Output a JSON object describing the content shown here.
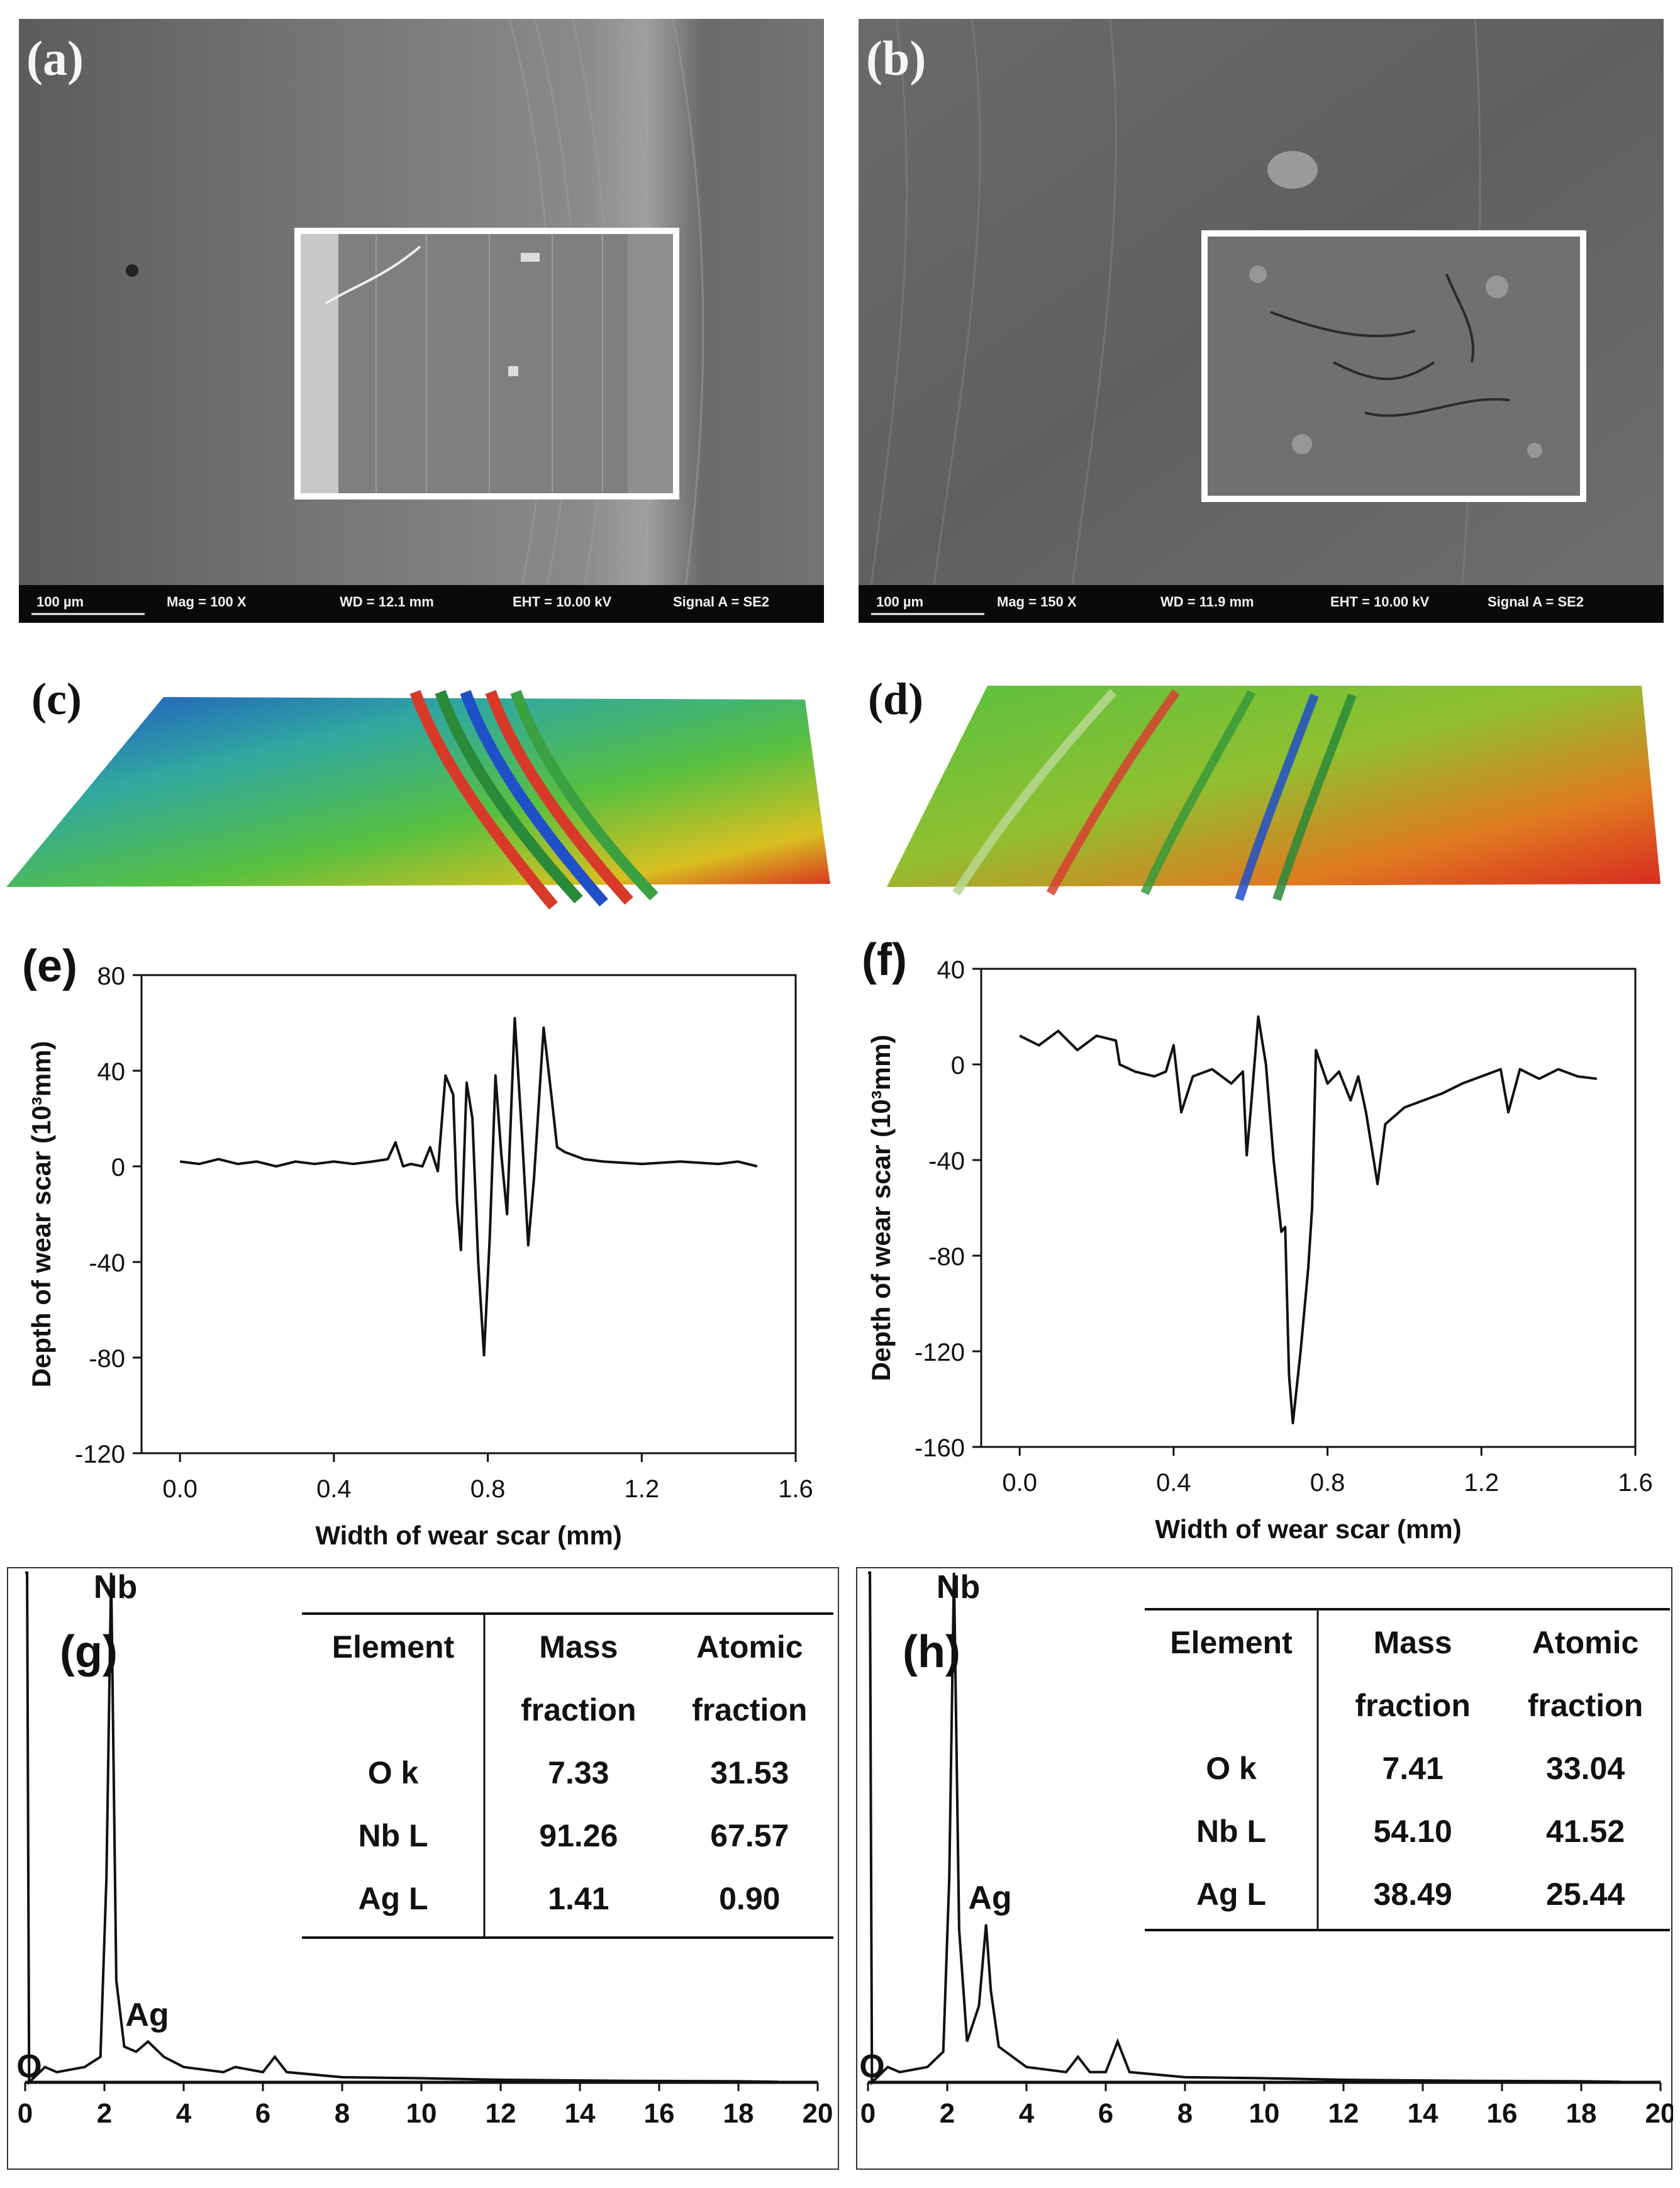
{
  "panels": {
    "a": {
      "label": "(a)",
      "scale": "100 µm",
      "mag": "Mag =    100 X",
      "wd": "WD = 12.1 mm",
      "eht": "EHT = 10.00 kV",
      "signal": "Signal A = SE2"
    },
    "b": {
      "label": "(b)",
      "scale": "100 µm",
      "mag": "Mag =    150 X",
      "wd": "WD = 11.9 mm",
      "eht": "EHT = 10.00 kV",
      "signal": "Signal A = SE2"
    },
    "c": {
      "label": "(c)"
    },
    "d": {
      "label": "(d)"
    }
  },
  "chart_data": [
    {
      "id": "e",
      "label": "(e)",
      "type": "line",
      "xlabel": "Width of wear scar (mm)",
      "ylabel": "Depth of wear scar (10³mm)",
      "xlim": [
        -0.1,
        1.6
      ],
      "ylim": [
        -120,
        80
      ],
      "xticks": [
        "0.0",
        "0.4",
        "0.8",
        "1.2",
        "1.6"
      ],
      "xtick_values": [
        0.0,
        0.4,
        0.8,
        1.2,
        1.6
      ],
      "yticks": [
        "80",
        "40",
        "0",
        "-40",
        "-80",
        "-120"
      ],
      "ytick_values": [
        80,
        40,
        0,
        -40,
        -80,
        -120
      ],
      "series": [
        {
          "name": "profile",
          "points": [
            [
              0.0,
              2
            ],
            [
              0.05,
              1
            ],
            [
              0.1,
              3
            ],
            [
              0.15,
              1
            ],
            [
              0.2,
              2
            ],
            [
              0.25,
              0
            ],
            [
              0.3,
              2
            ],
            [
              0.35,
              1
            ],
            [
              0.4,
              2
            ],
            [
              0.45,
              1
            ],
            [
              0.5,
              2
            ],
            [
              0.54,
              3
            ],
            [
              0.56,
              10
            ],
            [
              0.58,
              0
            ],
            [
              0.6,
              1
            ],
            [
              0.63,
              0
            ],
            [
              0.65,
              8
            ],
            [
              0.67,
              -2
            ],
            [
              0.69,
              38
            ],
            [
              0.71,
              30
            ],
            [
              0.72,
              -15
            ],
            [
              0.73,
              -35
            ],
            [
              0.745,
              35
            ],
            [
              0.76,
              20
            ],
            [
              0.775,
              -40
            ],
            [
              0.79,
              -79
            ],
            [
              0.805,
              -30
            ],
            [
              0.82,
              38
            ],
            [
              0.835,
              5
            ],
            [
              0.85,
              -20
            ],
            [
              0.87,
              62
            ],
            [
              0.89,
              10
            ],
            [
              0.905,
              -33
            ],
            [
              0.92,
              -5
            ],
            [
              0.945,
              58
            ],
            [
              0.965,
              30
            ],
            [
              0.98,
              8
            ],
            [
              1.0,
              6
            ],
            [
              1.05,
              3
            ],
            [
              1.1,
              2
            ],
            [
              1.2,
              1
            ],
            [
              1.3,
              2
            ],
            [
              1.4,
              1
            ],
            [
              1.45,
              2
            ],
            [
              1.5,
              0
            ]
          ]
        }
      ]
    },
    {
      "id": "f",
      "label": "(f)",
      "type": "line",
      "xlabel": "Width of wear scar (mm)",
      "ylabel": "Depth of wear scar (10³mm)",
      "xlim": [
        -0.1,
        1.6
      ],
      "ylim": [
        -160,
        40
      ],
      "xticks": [
        "0.0",
        "0.4",
        "0.8",
        "1.2",
        "1.6"
      ],
      "xtick_values": [
        0.0,
        0.4,
        0.8,
        1.2,
        1.6
      ],
      "yticks": [
        "40",
        "0",
        "-40",
        "-80",
        "-120",
        "-160"
      ],
      "ytick_values": [
        40,
        0,
        -40,
        -80,
        -120,
        -160
      ],
      "series": [
        {
          "name": "profile",
          "points": [
            [
              0.0,
              12
            ],
            [
              0.05,
              8
            ],
            [
              0.1,
              14
            ],
            [
              0.15,
              6
            ],
            [
              0.2,
              12
            ],
            [
              0.25,
              10
            ],
            [
              0.26,
              0
            ],
            [
              0.3,
              -3
            ],
            [
              0.35,
              -5
            ],
            [
              0.38,
              -3
            ],
            [
              0.4,
              8
            ],
            [
              0.42,
              -20
            ],
            [
              0.45,
              -5
            ],
            [
              0.5,
              -2
            ],
            [
              0.55,
              -8
            ],
            [
              0.58,
              -3
            ],
            [
              0.59,
              -38
            ],
            [
              0.6,
              -20
            ],
            [
              0.62,
              20
            ],
            [
              0.64,
              0
            ],
            [
              0.66,
              -40
            ],
            [
              0.68,
              -70
            ],
            [
              0.69,
              -68
            ],
            [
              0.7,
              -130
            ],
            [
              0.71,
              -150
            ],
            [
              0.73,
              -120
            ],
            [
              0.75,
              -85
            ],
            [
              0.76,
              -60
            ],
            [
              0.77,
              6
            ],
            [
              0.8,
              -8
            ],
            [
              0.83,
              -3
            ],
            [
              0.86,
              -15
            ],
            [
              0.88,
              -5
            ],
            [
              0.9,
              -20
            ],
            [
              0.93,
              -50
            ],
            [
              0.95,
              -25
            ],
            [
              1.0,
              -18
            ],
            [
              1.05,
              -15
            ],
            [
              1.1,
              -12
            ],
            [
              1.15,
              -8
            ],
            [
              1.2,
              -5
            ],
            [
              1.25,
              -2
            ],
            [
              1.27,
              -20
            ],
            [
              1.3,
              -2
            ],
            [
              1.35,
              -6
            ],
            [
              1.4,
              -2
            ],
            [
              1.45,
              -5
            ],
            [
              1.5,
              -6
            ]
          ]
        }
      ]
    },
    {
      "id": "g",
      "label": "(g)",
      "type": "line",
      "xlim": [
        0,
        20
      ],
      "xticks": [
        "0",
        "2",
        "4",
        "6",
        "8",
        "10",
        "12",
        "14",
        "16",
        "18",
        "20"
      ],
      "xtick_values": [
        0,
        2,
        4,
        6,
        8,
        10,
        12,
        14,
        16,
        18,
        20
      ],
      "peak_labels": [
        {
          "text": "Nb",
          "x": 2.2
        },
        {
          "text": "Ag",
          "x": 3.0
        },
        {
          "text": "O",
          "x": 0.5
        }
      ],
      "series": [
        {
          "name": "spectrum",
          "points": [
            [
              0,
              100
            ],
            [
              0.05,
              100
            ],
            [
              0.1,
              0
            ],
            [
              0.5,
              3
            ],
            [
              0.8,
              2
            ],
            [
              1.5,
              3
            ],
            [
              1.9,
              5
            ],
            [
              2.05,
              40
            ],
            [
              2.17,
              100
            ],
            [
              2.3,
              20
            ],
            [
              2.5,
              7
            ],
            [
              2.8,
              6
            ],
            [
              3.1,
              8
            ],
            [
              3.5,
              5
            ],
            [
              4.0,
              3
            ],
            [
              5.0,
              2
            ],
            [
              5.3,
              3
            ],
            [
              6.0,
              2
            ],
            [
              6.3,
              5
            ],
            [
              6.6,
              2
            ],
            [
              8,
              1
            ],
            [
              10,
              0.8
            ],
            [
              12,
              0.5
            ],
            [
              15,
              0.3
            ],
            [
              18,
              0.2
            ],
            [
              19,
              0.1
            ]
          ]
        }
      ],
      "table": {
        "headers": [
          "Element",
          "Mass fraction",
          "Atomic fraction"
        ],
        "header_lines": [
          [
            "Element",
            ""
          ],
          [
            "Mass",
            "fraction"
          ],
          [
            "Atomic",
            "fraction"
          ]
        ],
        "rows": [
          [
            "O k",
            "7.33",
            "31.53"
          ],
          [
            "Nb L",
            "91.26",
            "67.57"
          ],
          [
            "Ag L",
            "1.41",
            "0.90"
          ]
        ]
      }
    },
    {
      "id": "h",
      "label": "(h)",
      "type": "line",
      "xlim": [
        0,
        20
      ],
      "xticks": [
        "0",
        "2",
        "4",
        "6",
        "8",
        "10",
        "12",
        "14",
        "16",
        "18",
        "20"
      ],
      "xtick_values": [
        0,
        2,
        4,
        6,
        8,
        10,
        12,
        14,
        16,
        18,
        20
      ],
      "peak_labels": [
        {
          "text": "Nb",
          "x": 2.2
        },
        {
          "text": "Ag",
          "x": 3.0
        },
        {
          "text": "O",
          "x": 0.5
        }
      ],
      "series": [
        {
          "name": "spectrum",
          "points": [
            [
              0,
              100
            ],
            [
              0.05,
              100
            ],
            [
              0.1,
              0
            ],
            [
              0.5,
              3
            ],
            [
              0.8,
              2
            ],
            [
              1.5,
              3
            ],
            [
              1.9,
              6
            ],
            [
              2.05,
              40
            ],
            [
              2.17,
              100
            ],
            [
              2.3,
              30
            ],
            [
              2.5,
              8
            ],
            [
              2.8,
              15
            ],
            [
              2.98,
              31
            ],
            [
              3.1,
              18
            ],
            [
              3.3,
              7
            ],
            [
              4.0,
              3
            ],
            [
              5.0,
              2
            ],
            [
              5.3,
              5
            ],
            [
              5.6,
              2
            ],
            [
              6.0,
              2
            ],
            [
              6.3,
              8
            ],
            [
              6.6,
              2
            ],
            [
              8,
              1
            ],
            [
              10,
              0.8
            ],
            [
              12,
              0.5
            ],
            [
              15,
              0.3
            ],
            [
              18,
              0.2
            ],
            [
              19,
              0.1
            ]
          ]
        }
      ],
      "table": {
        "headers": [
          "Element",
          "Mass fraction",
          "Atomic fraction"
        ],
        "header_lines": [
          [
            "Element",
            ""
          ],
          [
            "Mass",
            "fraction"
          ],
          [
            "Atomic",
            "fraction"
          ]
        ],
        "rows": [
          [
            "O k",
            "7.41",
            "33.04"
          ],
          [
            "Nb L",
            "54.10",
            "41.52"
          ],
          [
            "Ag L",
            "38.49",
            "25.44"
          ]
        ]
      }
    }
  ]
}
